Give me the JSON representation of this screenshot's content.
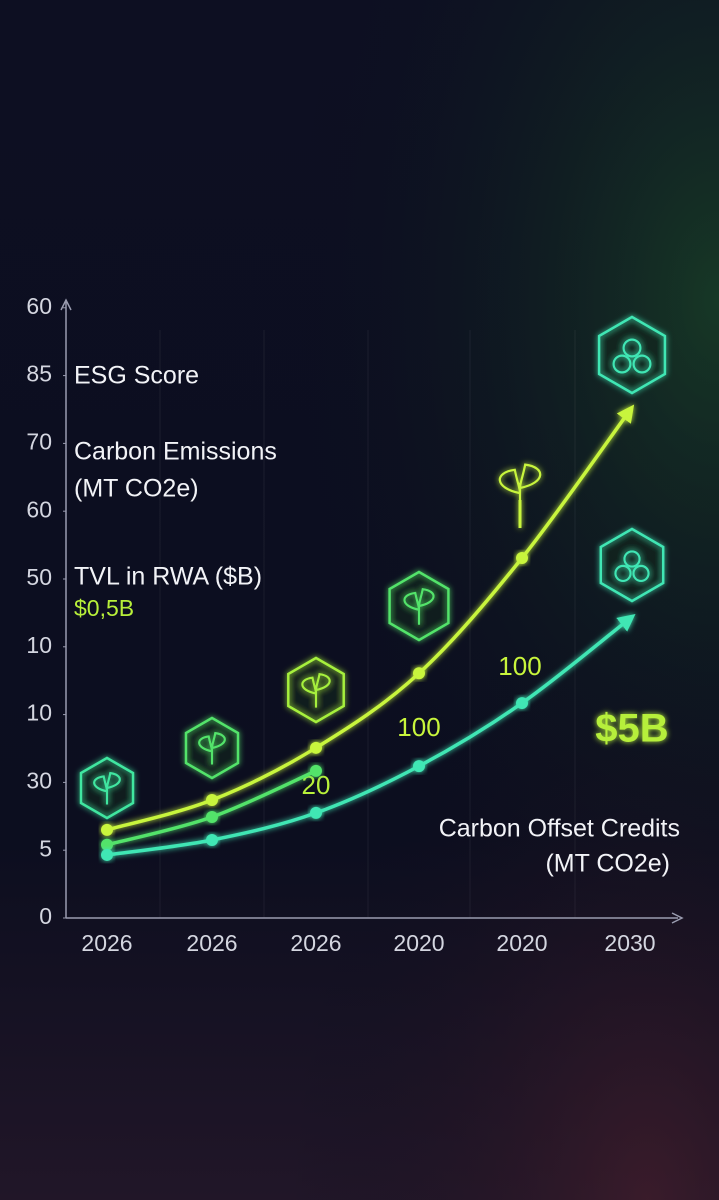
{
  "chart_data": {
    "type": "line",
    "categories": [
      "2026",
      "2026",
      "2026",
      "2020",
      "2020",
      "2030"
    ],
    "series": [
      {
        "color": "#c8f53c",
        "values": [
          1.3,
          1.74,
          2.51,
          3.61,
          5.31,
          7.49
        ]
      },
      {
        "color": "#52e36a",
        "values": [
          1.08,
          1.49,
          2.17,
          null,
          null,
          null
        ]
      },
      {
        "color": "#3fe6b4",
        "values": [
          0.93,
          1.15,
          1.55,
          2.24,
          3.17,
          4.42
        ]
      }
    ],
    "ylim": [
      0,
      9.1
    ],
    "yticks": [
      0,
      {
        "value": 1,
        "label": "5"
      },
      {
        "value": 2,
        "label": "30"
      },
      {
        "value": 3,
        "label": "10"
      },
      {
        "value": 4,
        "label": "10"
      },
      {
        "value": 5,
        "label": "50"
      },
      {
        "value": 6,
        "label": "60"
      },
      {
        "value": 7,
        "label": "70"
      },
      {
        "value": 8,
        "label": "85"
      },
      {
        "value": 9,
        "label": "60"
      }
    ],
    "legend": [
      {
        "lines": [
          "ESG Score"
        ]
      },
      {
        "lines": [
          "Carbon Emissions",
          "(MT CO2e)"
        ]
      },
      {
        "lines": [
          "TVL in RWA ($B)"
        ],
        "note": "$0,5B"
      }
    ],
    "annotations": [
      "20",
      "100",
      "100",
      "$5B",
      "Carbon Offset Credits",
      "(MT CO2e)"
    ]
  }
}
